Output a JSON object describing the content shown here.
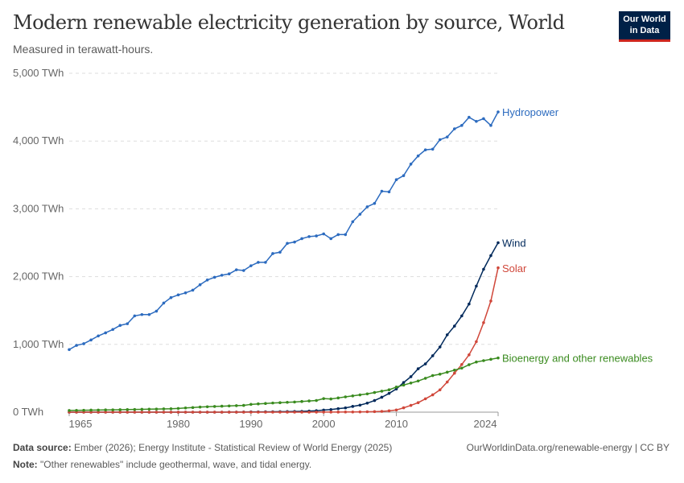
{
  "header": {
    "title": "Modern renewable electricity generation by source, World",
    "subtitle": "Measured in terawatt-hours.",
    "logo_line1": "Our World",
    "logo_line2": "in Data"
  },
  "footer": {
    "source_label": "Data source:",
    "source": "Ember (2026); Energy Institute - Statistical Review of World Energy (2025)",
    "url": "OurWorldinData.org/renewable-energy | CC BY",
    "note_label": "Note:",
    "note": "\"Other renewables\" include geothermal, wave, and tidal energy."
  },
  "chart_data": {
    "type": "line",
    "x_start": 1965,
    "x_end": 2024,
    "xticks": [
      1965,
      1980,
      1990,
      2000,
      2010,
      2024
    ],
    "yticks": [
      0,
      1000,
      2000,
      3000,
      4000,
      5000
    ],
    "ytick_labels": [
      "0 TWh",
      "1,000 TWh",
      "2,000 TWh",
      "3,000 TWh",
      "4,000 TWh",
      "5,000 TWh"
    ],
    "ylim": [
      0,
      5000
    ],
    "grid": "horizontal dashed",
    "legend": "inline-right",
    "series": [
      {
        "name": "Hydropower",
        "color": "#2c6bbf",
        "values": [
          923,
          985,
          1010,
          1065,
          1125,
          1170,
          1220,
          1280,
          1305,
          1420,
          1440,
          1440,
          1490,
          1610,
          1690,
          1730,
          1760,
          1800,
          1880,
          1950,
          1990,
          2020,
          2040,
          2100,
          2090,
          2160,
          2210,
          2210,
          2340,
          2360,
          2490,
          2510,
          2560,
          2590,
          2600,
          2630,
          2560,
          2620,
          2620,
          2810,
          2920,
          3030,
          3080,
          3260,
          3250,
          3430,
          3490,
          3660,
          3780,
          3870,
          3880,
          4020,
          4060,
          4180,
          4230,
          4350,
          4290,
          4330,
          4230,
          4430
        ]
      },
      {
        "name": "Wind",
        "color": "#00295b",
        "values": [
          0,
          0,
          0,
          0,
          0,
          0,
          0,
          0,
          0,
          0,
          0,
          0,
          0,
          0,
          0,
          0,
          0,
          0,
          0,
          0,
          0,
          0,
          1,
          1,
          2,
          4,
          4,
          5,
          6,
          7,
          8,
          10,
          12,
          16,
          21,
          31,
          38,
          52,
          63,
          85,
          104,
          133,
          171,
          220,
          277,
          342,
          437,
          523,
          640,
          712,
          832,
          962,
          1141,
          1270,
          1420,
          1596,
          1860,
          2108,
          2310,
          2500
        ]
      },
      {
        "name": "Solar",
        "color": "#d0473a",
        "values": [
          0,
          0,
          0,
          0,
          0,
          0,
          0,
          0,
          0,
          0,
          0,
          0,
          0,
          0,
          0,
          0,
          0,
          0,
          0,
          0,
          0,
          0,
          0,
          0,
          0,
          0,
          0,
          0,
          0,
          0,
          0,
          0,
          0,
          0,
          1,
          1,
          2,
          2,
          3,
          3,
          4,
          6,
          8,
          12,
          20,
          32,
          64,
          100,
          140,
          197,
          256,
          329,
          445,
          575,
          703,
          846,
          1040,
          1320,
          1640,
          2130
        ]
      },
      {
        "name": "Bioenergy and other renewables",
        "color": "#3a8b1f",
        "values": [
          25,
          26,
          28,
          30,
          31,
          33,
          34,
          36,
          38,
          40,
          42,
          44,
          46,
          48,
          50,
          55,
          62,
          68,
          75,
          80,
          84,
          88,
          92,
          96,
          100,
          115,
          122,
          128,
          135,
          140,
          145,
          150,
          158,
          165,
          172,
          200,
          195,
          210,
          225,
          240,
          255,
          270,
          290,
          310,
          330,
          370,
          400,
          430,
          460,
          500,
          540,
          560,
          590,
          620,
          650,
          700,
          740,
          760,
          780,
          800
        ]
      }
    ]
  }
}
